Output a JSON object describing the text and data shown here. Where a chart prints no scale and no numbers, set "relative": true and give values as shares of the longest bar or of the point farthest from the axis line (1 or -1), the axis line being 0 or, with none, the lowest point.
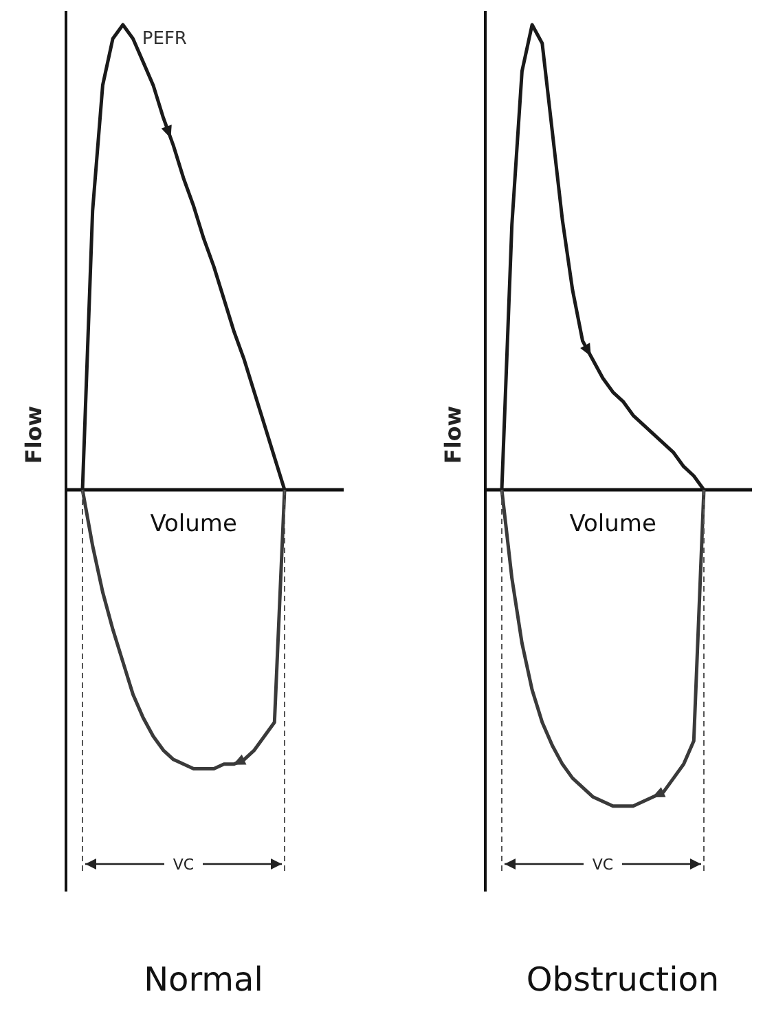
{
  "chart_data": [
    {
      "type": "line",
      "title": "Normal",
      "xlabel": "Volume",
      "ylabel": "Flow",
      "relative": true,
      "annotations": [
        "PEFR",
        "VC"
      ],
      "categories": [
        null,
        null,
        null,
        null,
        null,
        null,
        null,
        null,
        null,
        null,
        null,
        null,
        null,
        null,
        null,
        null,
        null,
        null,
        null,
        null,
        null
      ],
      "series": [
        {
          "color": "#1a1a1a",
          "values": [
            0,
            0.6,
            0.87,
            0.97,
            1,
            0.97,
            0.92,
            0.87,
            0.8,
            0.74,
            0.67,
            0.61,
            0.54,
            0.48,
            0.41,
            0.34,
            0.28,
            0.21,
            0.14,
            0.07,
            0
          ]
        },
        {
          "color": "#3a3a3a",
          "values": [
            0,
            -0.12,
            -0.22,
            -0.3,
            -0.37,
            -0.44,
            -0.49,
            -0.53,
            -0.56,
            -0.58,
            -0.59,
            -0.6,
            -0.6,
            -0.6,
            -0.59,
            -0.59,
            -0.58,
            -0.56,
            -0.53,
            -0.5,
            0
          ]
        }
      ]
    },
    {
      "type": "line",
      "title": "Obstruction",
      "xlabel": "Volume",
      "ylabel": "Flow",
      "relative": true,
      "annotations": [
        "VC"
      ],
      "categories": [
        null,
        null,
        null,
        null,
        null,
        null,
        null,
        null,
        null,
        null,
        null,
        null,
        null,
        null,
        null,
        null,
        null,
        null,
        null,
        null,
        null
      ],
      "series": [
        {
          "color": "#1a1a1a",
          "values": [
            0,
            0.57,
            0.9,
            1,
            0.96,
            0.77,
            0.58,
            0.43,
            0.32,
            0.28,
            0.24,
            0.21,
            0.19,
            0.16,
            0.14,
            0.12,
            0.1,
            0.08,
            0.05,
            0.03,
            0
          ]
        },
        {
          "color": "#3a3a3a",
          "values": [
            0,
            -0.19,
            -0.33,
            -0.43,
            -0.5,
            -0.55,
            -0.59,
            -0.62,
            -0.64,
            -0.66,
            -0.67,
            -0.68,
            -0.68,
            -0.68,
            -0.67,
            -0.66,
            -0.65,
            -0.62,
            -0.59,
            -0.54,
            0
          ]
        }
      ]
    }
  ]
}
